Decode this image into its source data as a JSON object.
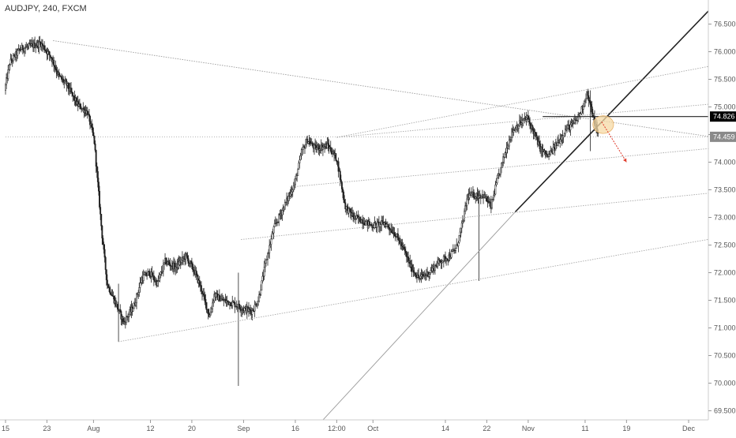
{
  "header": {
    "symbol": "AUDJPY, 240, FXCM"
  },
  "colors": {
    "candle": "#222222",
    "trendline": "#222222",
    "channel": "#a8a8a8",
    "dotted_line": "#9a9a9a",
    "arrow": "#e03b2b",
    "highlight": "#f5d9a6",
    "label_dark_bg": "#000000",
    "label_grey_bg": "#8a8a8a",
    "label_text": "#ffffff"
  },
  "chart_data": {
    "type": "candlestick",
    "title": "AUDJPY, 240, FXCM",
    "ylim": [
      69.3,
      76.9
    ],
    "y_ticks": [
      "69.500",
      "70.000",
      "70.500",
      "71.000",
      "71.500",
      "72.000",
      "72.500",
      "73.000",
      "73.500",
      "74.000",
      "74.500",
      "75.000",
      "75.500",
      "76.000",
      "76.500"
    ],
    "x_ticks": [
      "15",
      "23",
      "Aug",
      "12",
      "20",
      "Sep",
      "16",
      "12:00",
      "Oct",
      "14",
      "22",
      "Nov",
      "11",
      "19",
      "Dec"
    ],
    "x_range_days": [
      0,
      142
    ],
    "x_tick_days": [
      0,
      8,
      17,
      28,
      36,
      46,
      56,
      64,
      71,
      85,
      93,
      101,
      112,
      120,
      132
    ],
    "price_labels": [
      {
        "text": "74.826",
        "value": 74.826,
        "style": "dark"
      },
      {
        "text": "74.459",
        "value": 74.459,
        "style": "grey"
      }
    ],
    "grid": false,
    "series_path": [
      [
        0,
        75.3
      ],
      [
        1,
        75.8
      ],
      [
        3,
        76.05
      ],
      [
        5,
        76.1
      ],
      [
        7,
        76.15
      ],
      [
        9,
        75.9
      ],
      [
        10.5,
        75.55
      ],
      [
        12,
        75.4
      ],
      [
        14,
        75.05
      ],
      [
        16,
        74.9
      ],
      [
        17.3,
        74.4
      ],
      [
        18.8,
        72.7
      ],
      [
        19.8,
        71.8
      ],
      [
        21.2,
        71.5
      ],
      [
        23,
        71.1
      ],
      [
        25,
        71.4
      ],
      [
        26.5,
        71.9
      ],
      [
        28,
        72.0
      ],
      [
        29.5,
        71.8
      ],
      [
        31,
        72.2
      ],
      [
        33,
        72.1
      ],
      [
        35,
        72.3
      ],
      [
        36.8,
        72.0
      ],
      [
        38,
        71.7
      ],
      [
        39.6,
        71.2
      ],
      [
        40.5,
        71.6
      ],
      [
        42,
        71.5
      ],
      [
        44,
        71.45
      ],
      [
        46,
        71.35
      ],
      [
        47.8,
        71.3
      ],
      [
        49,
        71.5
      ],
      [
        50.5,
        72.2
      ],
      [
        52,
        72.8
      ],
      [
        54,
        73.2
      ],
      [
        56,
        73.6
      ],
      [
        57.5,
        74.2
      ],
      [
        58.5,
        74.4
      ],
      [
        60,
        74.25
      ],
      [
        62.5,
        74.3
      ],
      [
        64.2,
        74.05
      ],
      [
        65.8,
        73.2
      ],
      [
        67.5,
        73.0
      ],
      [
        69,
        72.95
      ],
      [
        71,
        72.85
      ],
      [
        73.5,
        72.9
      ],
      [
        75.5,
        72.7
      ],
      [
        77.2,
        72.4
      ],
      [
        78.5,
        72.1
      ],
      [
        80,
        71.9
      ],
      [
        82,
        72.0
      ],
      [
        84,
        72.2
      ],
      [
        86,
        72.3
      ],
      [
        87.3,
        72.45
      ],
      [
        88.5,
        72.9
      ],
      [
        89.5,
        73.4
      ],
      [
        91,
        73.4
      ],
      [
        92.5,
        73.4
      ],
      [
        94,
        73.2
      ],
      [
        95,
        73.6
      ],
      [
        96.5,
        74.1
      ],
      [
        98,
        74.55
      ],
      [
        99.5,
        74.7
      ],
      [
        101,
        74.8
      ],
      [
        102.2,
        74.55
      ],
      [
        103.5,
        74.25
      ],
      [
        105,
        74.1
      ],
      [
        106.5,
        74.3
      ],
      [
        108.5,
        74.6
      ],
      [
        110,
        74.7
      ],
      [
        111.3,
        74.9
      ],
      [
        112.5,
        75.25
      ],
      [
        113.5,
        74.9
      ],
      [
        114.6,
        74.5
      ]
    ],
    "candles_open_low_high_close_approx": [
      {
        "day": 21.8,
        "low": 70.75,
        "high": 71.8
      },
      {
        "day": 45.0,
        "low": 69.95,
        "high": 72.0
      },
      {
        "day": 91.5,
        "low": 71.85,
        "high": 72.9
      },
      {
        "day": 113.0,
        "low": 74.2,
        "high": 75.3
      }
    ],
    "annotations": [
      {
        "kind": "trendline",
        "from": [
          61.0,
          69.3
        ],
        "to": [
          98.5,
          73.1
        ]
      },
      {
        "kind": "trendline_bold",
        "from": [
          98.5,
          73.1
        ],
        "to": [
          137.5,
          76.9
        ]
      },
      {
        "kind": "channel_line",
        "from": [
          21.8,
          70.75
        ],
        "to": [
          148.0,
          72.8
        ]
      },
      {
        "kind": "channel_line",
        "from": [
          45.5,
          72.6
        ],
        "to": [
          148.0,
          73.55
        ]
      },
      {
        "kind": "channel_line",
        "from": [
          55.0,
          73.55
        ],
        "to": [
          148.0,
          74.35
        ]
      },
      {
        "kind": "channel_line",
        "from": [
          64.0,
          74.45
        ],
        "to": [
          148.0,
          75.15
        ]
      },
      {
        "kind": "channel_line",
        "from": [
          64.0,
          74.45
        ],
        "to": [
          148.0,
          75.95
        ]
      },
      {
        "kind": "dotted_line",
        "from": [
          9.2,
          76.2
        ],
        "to": [
          148.0,
          74.3
        ]
      },
      {
        "kind": "horizontal_line",
        "from": [
          103.8,
          74.826
        ],
        "to": [
          148.0,
          74.826
        ]
      },
      {
        "kind": "horizontal_dotted",
        "from": [
          0,
          74.459
        ],
        "to": [
          148.0,
          74.459
        ]
      },
      {
        "kind": "ellipse",
        "center": [
          115.5,
          74.68
        ],
        "rx_days": 2.0,
        "ry_price": 0.16
      },
      {
        "kind": "arrow",
        "from": [
          115.2,
          74.73
        ],
        "to": [
          120.0,
          74.0
        ]
      }
    ]
  }
}
